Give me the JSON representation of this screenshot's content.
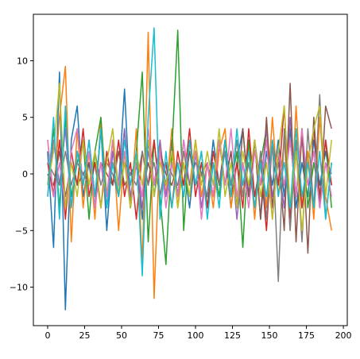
{
  "chart_data": {
    "type": "line",
    "x": [
      0,
      4,
      8,
      12,
      16,
      20,
      24,
      28,
      32,
      36,
      40,
      44,
      48,
      52,
      56,
      60,
      64,
      68,
      72,
      76,
      80,
      84,
      88,
      92,
      96,
      100,
      104,
      108,
      112,
      116,
      120,
      124,
      128,
      132,
      136,
      140,
      144,
      148,
      152,
      156,
      160,
      164,
      168,
      172,
      176,
      180,
      184,
      188,
      192
    ],
    "series": [
      {
        "color": "#1f77b4",
        "values": [
          2,
          -6.5,
          9,
          -12,
          3,
          6,
          -2,
          1,
          -3,
          4,
          -5,
          2,
          -1,
          7.5,
          -3,
          1,
          -4,
          3,
          -2,
          2,
          -1,
          3,
          -2,
          1,
          -3,
          2,
          0,
          -2,
          3,
          -1,
          2,
          -3,
          1,
          4,
          -2,
          3,
          -4,
          2,
          -1,
          3,
          -2,
          4,
          -3,
          1,
          -2,
          3,
          -1,
          2,
          -1
        ]
      },
      {
        "color": "#ff7f0e",
        "values": [
          3,
          -2,
          5,
          9.5,
          -6,
          4,
          -3,
          2,
          -4,
          5,
          -2,
          3,
          -5,
          2,
          -3,
          4,
          -8,
          12.5,
          -11,
          3,
          -2,
          4,
          -3,
          2,
          -1,
          3,
          -2,
          1,
          -3,
          2,
          4,
          -3,
          1,
          -2,
          3,
          -4,
          2,
          -3,
          5,
          -2,
          3,
          -5,
          6,
          -3,
          2,
          -4,
          5,
          -2,
          -5
        ]
      },
      {
        "color": "#2ca02c",
        "values": [
          -1,
          4,
          -3,
          5,
          -2,
          1,
          3,
          -4,
          2,
          5,
          -3,
          1,
          -2,
          4,
          -3,
          2,
          9,
          -6,
          3,
          -2,
          -8,
          2,
          12.7,
          -5,
          3,
          -1,
          2,
          -3,
          1,
          -2,
          3,
          -1,
          2,
          -6.5,
          3,
          -2,
          1,
          4,
          -3,
          2,
          -1,
          3,
          -2,
          4,
          -3,
          1,
          -2,
          3,
          -3
        ]
      },
      {
        "color": "#d62728",
        "values": [
          1,
          -2,
          3,
          -4,
          2,
          -1,
          4,
          -2,
          1,
          -3,
          2,
          -1,
          3,
          -2,
          1,
          -4,
          2,
          -1,
          3,
          -2,
          1,
          -3,
          2,
          -1,
          4,
          -2,
          1,
          -3,
          2,
          -1,
          3,
          -2,
          1,
          -3,
          4,
          -2,
          1,
          -5,
          3,
          -1,
          6,
          -4,
          2,
          -3,
          1,
          4,
          -2,
          3,
          -1
        ]
      },
      {
        "color": "#9467bd",
        "values": [
          -2,
          3,
          -1,
          4,
          -3,
          2,
          -1,
          3,
          -2,
          1,
          -3,
          2,
          -1,
          4,
          -2,
          1,
          -3,
          2,
          -1,
          3,
          -2,
          1,
          -2,
          3,
          -1,
          2,
          -3,
          1,
          -2,
          3,
          -1,
          2,
          -4,
          1,
          -2,
          3,
          -1,
          4,
          -2,
          1,
          -3,
          5,
          -2,
          3,
          -1,
          2,
          -3,
          1,
          0
        ]
      },
      {
        "color": "#8c564b",
        "values": [
          0,
          -1,
          2,
          -2,
          1,
          -1,
          0,
          1,
          -2,
          1,
          0,
          -1,
          2,
          -1,
          0,
          1,
          -2,
          1,
          -1,
          2,
          0,
          -1,
          1,
          -2,
          2,
          -1,
          0,
          1,
          -2,
          3,
          -1,
          2,
          -3,
          4,
          -2,
          3,
          -4,
          5,
          -3,
          2,
          -5,
          8,
          -6,
          4,
          -7,
          5,
          -3,
          6,
          4
        ]
      },
      {
        "color": "#e377c2",
        "values": [
          3,
          -2,
          1,
          -3,
          2,
          4,
          -1,
          2,
          -3,
          1,
          -2,
          3,
          -1,
          2,
          -3,
          1,
          -2,
          4,
          -1,
          2,
          -3,
          1,
          -2,
          3,
          -1,
          2,
          -4,
          1,
          -2,
          3,
          -1,
          4,
          -2,
          1,
          -3,
          2,
          -1,
          3,
          -4,
          2,
          -1,
          3,
          -2,
          4,
          -1,
          2,
          -3,
          1,
          -2
        ]
      },
      {
        "color": "#7f7f7f",
        "values": [
          1,
          0,
          -1,
          2,
          -1,
          1,
          0,
          -1,
          2,
          -1,
          1,
          0,
          -2,
          1,
          0,
          -1,
          2,
          -1,
          1,
          -2,
          1,
          0,
          -1,
          2,
          -1,
          1,
          0,
          -2,
          1,
          -1,
          2,
          -1,
          3,
          -2,
          1,
          -3,
          2,
          -4,
          3,
          -9.5,
          4,
          -5,
          3,
          -6,
          4,
          -3,
          7,
          -4,
          1
        ]
      },
      {
        "color": "#bcbd22",
        "values": [
          -1,
          2,
          8,
          -3,
          1,
          -2,
          3,
          -1,
          2,
          -3,
          1,
          4,
          -2,
          1,
          -3,
          2,
          -1,
          3,
          -2,
          1,
          -1,
          2,
          -3,
          1,
          -2,
          3,
          -1,
          2,
          -1,
          4,
          -2,
          1,
          -3,
          2,
          -1,
          3,
          -2,
          1,
          -4,
          2,
          6,
          -3,
          2,
          -5,
          1,
          4,
          6,
          -2,
          3
        ]
      },
      {
        "color": "#17becf",
        "values": [
          -2,
          5,
          -4,
          6,
          -3,
          2,
          -1,
          3,
          -2,
          4,
          -3,
          1,
          -2,
          3,
          -1,
          2,
          -9,
          5,
          12.9,
          -4,
          2,
          -3,
          1,
          -2,
          3,
          -1,
          2,
          -4,
          1,
          -3,
          3,
          -2,
          4,
          -1,
          2,
          -3,
          1,
          -2,
          3,
          -2,
          1,
          -3,
          4,
          -2,
          1,
          -3,
          2,
          -4,
          1
        ]
      }
    ],
    "xlim": [
      -9.65,
      202.65
    ],
    "xticks": [
      0,
      25,
      50,
      75,
      100,
      125,
      150,
      175,
      200
    ],
    "ylim": [
      -13.4,
      14.1
    ],
    "yticks": [
      {
        "value": -10,
        "label": "−10"
      },
      {
        "value": -5,
        "label": "−5"
      },
      0,
      5,
      10
    ]
  }
}
